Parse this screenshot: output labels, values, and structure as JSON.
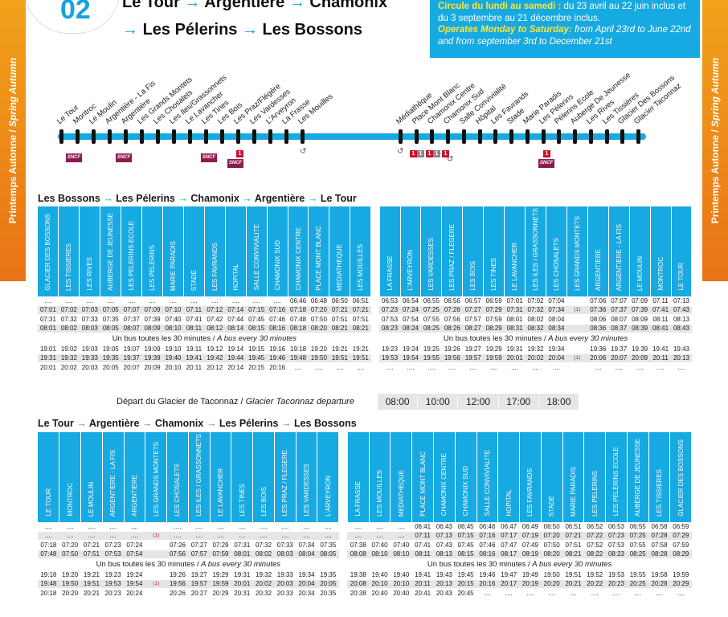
{
  "header": {
    "line_number": "02",
    "route_line1": [
      "Le Tour",
      "Argentière",
      "Chamonix"
    ],
    "route_line2": [
      "Les Pélerins",
      "Les Bossons"
    ],
    "arrow": "→",
    "season_fr": "Printemps Autonne",
    "season_sep": " / ",
    "season_en": "Spring Autumn",
    "info": {
      "fr_bold": "Circule du lundi au samedi :",
      "fr_text": " du 23 avril au 22 juin inclus et du 3 septembre au 21 décembre inclus.",
      "en_bold": "Operates Monday to Saturday:",
      "en_text": " from April 23rd to June 22nd and from september 3rd to December 21st"
    }
  },
  "line_map": {
    "stops": [
      "Le Tour",
      "Montroc",
      "Le Moulin",
      "Argentière - La Fis",
      "Argentière",
      "Les Grands Montets",
      "Les Chosalets",
      "Les Iles/Grassonnets",
      "Le Lavancher",
      "Les Tines",
      "Les Bois",
      "Les Praz/Flégère",
      "Les Vardesses",
      "L'Arveyron",
      "La Frasse",
      "Les Mouilles",
      "Médiathèque",
      "Place Mont Blanc",
      "Chamonix Centre",
      "Chamonix Sud",
      "Salle Convivialité",
      "Hôpital",
      "Les Favrands",
      "Stade",
      "Marie Paradis",
      "Les Pélerins",
      "Pélerins Ecole",
      "Auberge De Jeunesse",
      "Les Rives",
      "Les Tissières",
      "Glacier Des Bossons",
      "Glacier Taconnaz"
    ],
    "sncf_label": "SNCF",
    "tram_labels": [
      "1",
      "1",
      "1",
      "1",
      "1",
      "1",
      "1"
    ],
    "colors": {
      "accent": "#17a9e1",
      "sncf": "#8e1b4f",
      "tram": "#c9122d"
    }
  },
  "outbound": {
    "title_parts": [
      "Les Bossons",
      "Les Pélerins",
      "Chamonix",
      "Argentière",
      "Le Tour"
    ],
    "stops_left": [
      "GLACIER DES BOSSONS",
      "LES TISSIERES",
      "LES RIVES",
      "AUBERGE DE JEUNESSE",
      "LES PELERINS ECOLE",
      "LES PELERINS",
      "MARIE PARADIS",
      "STADE",
      "LES FAVRANDS",
      "HOPITAL",
      "SALLE CONVIVIALITE",
      "CHAMONIX SUD",
      "CHAMONIX CENTRE",
      "PLACE MONT BLANC",
      "MEDIATHEQUE",
      "LES MOUILLES"
    ],
    "stops_right": [
      "LA FRASSE",
      "L'ARVEYRON",
      "LES VARDESSES",
      "LES PRAZ / FLEGERE",
      "LES BOIS",
      "LES TINES",
      "LE LAVANCHER",
      "LES ILES / GRASSONNETS",
      "LES CHOSALETS",
      "LES GRANDS MONTETS",
      "ARGENTIERE",
      "ARGENTIERE - LA FIS",
      "LE MOULIN",
      "MONTROC",
      "LE TOUR"
    ],
    "rows_top": [
      {
        "l": [
          "....",
          "....",
          "....",
          "....",
          "....",
          "....",
          "....",
          "....",
          "....",
          "....",
          "....",
          "....",
          "06:46",
          "06:48",
          "06:50",
          "06:51"
        ],
        "r": [
          "06:53",
          "06:54",
          "06:55",
          "06:56",
          "06:57",
          "06:59",
          "07:01",
          "07:02",
          "07:04",
          "",
          "07:06",
          "07:07",
          "07:09",
          "07:11",
          "07:13"
        ]
      },
      {
        "l": [
          "07:01",
          "07:02",
          "07:03",
          "07:05",
          "07:07",
          "07:09",
          "07:10",
          "07:11",
          "07:12",
          "07:14",
          "07:15",
          "07:16",
          "07:18",
          "07:20",
          "07:21",
          "07:21"
        ],
        "r": [
          "07:23",
          "07:24",
          "07:25",
          "07:26",
          "07:27",
          "07:29",
          "07:31",
          "07:32",
          "07:34",
          "(1)",
          "07:36",
          "07:37",
          "07:39",
          "07:41",
          "07:43"
        ]
      },
      {
        "l": [
          "07:31",
          "07:32",
          "07:33",
          "07:35",
          "07:37",
          "07:39",
          "07:40",
          "07:41",
          "07:42",
          "07:44",
          "07:45",
          "07:46",
          "07:48",
          "07:50",
          "07:51",
          "07:51"
        ],
        "r": [
          "07:53",
          "07:54",
          "07:55",
          "07:56",
          "07:57",
          "07:59",
          "08:01",
          "08:02",
          "08:04",
          "",
          "08:06",
          "08:07",
          "08:09",
          "08:11",
          "08:13"
        ]
      },
      {
        "l": [
          "08:01",
          "08:02",
          "08:03",
          "08:05",
          "08:07",
          "08:09",
          "08:10",
          "08:11",
          "08:12",
          "08:14",
          "08:15",
          "08:16",
          "08:18",
          "08:20",
          "08:21",
          "08:21"
        ],
        "r": [
          "08:23",
          "08:24",
          "08:25",
          "08:26",
          "08:27",
          "08:29",
          "08:31",
          "08:32",
          "08:34",
          "",
          "08:36",
          "08:37",
          "08:39",
          "08:41",
          "08:43"
        ]
      }
    ],
    "rows_bottom": [
      {
        "l": [
          "19:01",
          "19:02",
          "19:03",
          "19:05",
          "19:07",
          "19:09",
          "19:10",
          "19:11",
          "19:12",
          "19:14",
          "19:15",
          "19:16",
          "19:18",
          "19:20",
          "19:21",
          "19:21"
        ],
        "r": [
          "19:23",
          "19:24",
          "19:25",
          "19:26",
          "19:27",
          "19:29",
          "19:31",
          "19:32",
          "19:34",
          "",
          "19:36",
          "19:37",
          "19:39",
          "19:41",
          "19:43"
        ]
      },
      {
        "l": [
          "19:31",
          "19:32",
          "19:33",
          "19:35",
          "19:37",
          "19:39",
          "19:40",
          "19:41",
          "19:42",
          "19:44",
          "19:45",
          "19:46",
          "19:48",
          "19:50",
          "19:51",
          "19:51"
        ],
        "r": [
          "19:53",
          "19:54",
          "19:55",
          "19:56",
          "19:57",
          "19:59",
          "20:01",
          "20:02",
          "20:04",
          "(1)",
          "20:06",
          "20:07",
          "20:09",
          "20:11",
          "20:13"
        ]
      },
      {
        "l": [
          "20:01",
          "20:02",
          "20:03",
          "20:05",
          "20:07",
          "20:09",
          "20:10",
          "20:11",
          "20:12",
          "20:14",
          "20:15",
          "20:16",
          "....",
          "....",
          "....",
          "...."
        ],
        "r": [
          "....",
          "....",
          "....",
          "....",
          "....",
          "....",
          "....",
          "....",
          "....",
          "",
          "....",
          "....",
          "....",
          "....",
          "...."
        ]
      }
    ]
  },
  "frequency_fr": "Un bus toutes les 30 minutes / ",
  "frequency_en": "A bus every 30 minutes",
  "glacier": {
    "label_fr": "Départ du Glacier de Taconnaz / ",
    "label_en": "Glacier Taconnaz departure",
    "times": [
      "08:00",
      "10:00",
      "12:00",
      "17:00",
      "18:00"
    ]
  },
  "inbound": {
    "title_parts": [
      "Le Tour",
      "Argentière",
      "Chamonix",
      "Les Pélerins",
      "Les Bossons"
    ],
    "stops_left": [
      "LE TOUR",
      "MONTROC",
      "LE MOULIN",
      "ARGENTIERE - LA FIS",
      "ARGENTIERE",
      "LES GRANDS MONTETS",
      "LES CHOSALETS",
      "LES ILES / GRASSONNETS",
      "LE LAVANCHER",
      "LES TINES",
      "LES BOIS",
      "LES PRAZ / FLEGERE",
      "LES VARDESSES",
      "L'ARVEYRON"
    ],
    "stops_right": [
      "LA FRASSE",
      "LES MOUILLES",
      "MEDIATHEQUE",
      "PLACE MONT BLANC",
      "CHAMONIX CENTRE",
      "CHAMONIX SUD",
      "SALLE CONVIVIALITE",
      "HOPITAL",
      "LES FAVRANDS",
      "STADE",
      "MARIE PARADIS",
      "LES PELERINS",
      "LES PELERINS ECOLE",
      "AUBERGE DE JEUNESSE",
      "LES TISSIERES",
      "GLACIER DES BOSSONS"
    ],
    "rows_top": [
      {
        "l": [
          "....",
          "....",
          "....",
          "....",
          "....",
          "",
          "....",
          "....",
          "....",
          "....",
          "....",
          "....",
          "....",
          "...."
        ],
        "r": [
          "....",
          "....",
          "....",
          "06:41",
          "06:43",
          "06:45",
          "06:46",
          "06:47",
          "06:49",
          "06:50",
          "06:51",
          "06:52",
          "06:53",
          "06:55",
          "06:58",
          "06:59"
        ]
      },
      {
        "l": [
          "....",
          "....",
          "....",
          "....",
          "....",
          "(1)",
          "....",
          "....",
          "....",
          "....",
          "....",
          "....",
          "....",
          "...."
        ],
        "r": [
          "....",
          "....",
          "....",
          "07:11",
          "07:13",
          "07:15",
          "07:16",
          "07:17",
          "07:19",
          "07:20",
          "07:21",
          "07:22",
          "07:23",
          "07:25",
          "07:28",
          "07:29"
        ]
      },
      {
        "l": [
          "07:18",
          "07:20",
          "07:21",
          "07:23",
          "07:24",
          "",
          "07:26",
          "07:27",
          "07:29",
          "07:31",
          "07:32",
          "07:33",
          "07:34",
          "07:35"
        ],
        "r": [
          "07:38",
          "07:40",
          "07:40",
          "07:41",
          "07:43",
          "07:45",
          "07:46",
          "07:47",
          "07:49",
          "07:50",
          "07:51",
          "07:52",
          "07:53",
          "07:55",
          "07:58",
          "07:59"
        ]
      },
      {
        "l": [
          "07:48",
          "07:50",
          "07:51",
          "07:53",
          "07:54",
          "",
          "07:56",
          "07:57",
          "07:59",
          "08:01",
          "08:02",
          "08:03",
          "08:04",
          "08:05"
        ],
        "r": [
          "08:08",
          "08:10",
          "08:10",
          "08:11",
          "08:13",
          "08:15",
          "08:16",
          "08:17",
          "08:19",
          "08:20",
          "08:21",
          "08:22",
          "08:23",
          "08:25",
          "08:28",
          "08:29"
        ]
      }
    ],
    "rows_bottom": [
      {
        "l": [
          "19:18",
          "19:20",
          "19:21",
          "19:23",
          "19:24",
          "",
          "19:26",
          "19:27",
          "19:29",
          "19:31",
          "19:32",
          "19:33",
          "19:34",
          "19:35"
        ],
        "r": [
          "19:38",
          "19:40",
          "19:40",
          "19:41",
          "19:43",
          "19:45",
          "19:46",
          "19:47",
          "19:49",
          "19:50",
          "19:51",
          "19:52",
          "19:53",
          "19:55",
          "19:58",
          "19:59"
        ]
      },
      {
        "l": [
          "19:48",
          "19:50",
          "19:51",
          "19:53",
          "19:54",
          "(1)",
          "19:56",
          "19:57",
          "19:59",
          "20:01",
          "20:02",
          "20:03",
          "20:04",
          "20:05"
        ],
        "r": [
          "20:08",
          "20:10",
          "20:10",
          "20:11",
          "20:13",
          "20:15",
          "20:16",
          "20:17",
          "20:19",
          "20:20",
          "20:21",
          "20:22",
          "20:23",
          "20:25",
          "20:28",
          "20:29"
        ]
      },
      {
        "l": [
          "20:18",
          "20:20",
          "20:21",
          "20:23",
          "20:24",
          "",
          "20:26",
          "20:27",
          "20:29",
          "20:31",
          "20:32",
          "20:33",
          "20:34",
          "20:35"
        ],
        "r": [
          "20:38",
          "20:40",
          "20:40",
          "20:41",
          "20:43",
          "20:45",
          "....",
          "....",
          "....",
          "....",
          "....",
          "....",
          "....",
          "....",
          "....",
          "...."
        ]
      }
    ]
  }
}
